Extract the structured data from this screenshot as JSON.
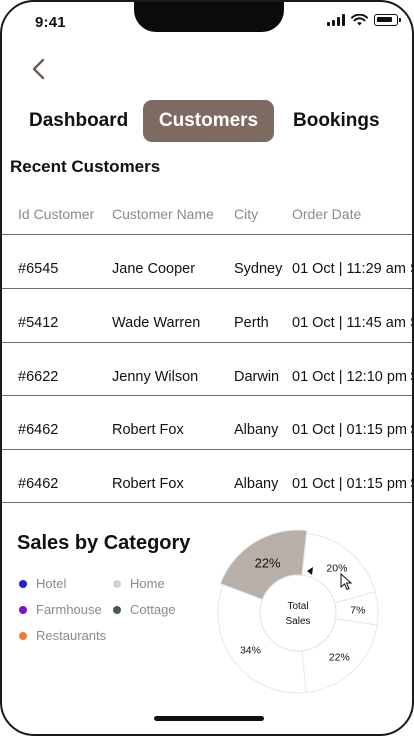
{
  "status_bar": {
    "time": "9:41"
  },
  "tabs": [
    {
      "label": "Dashboard",
      "active": false
    },
    {
      "label": "Customers",
      "active": true
    },
    {
      "label": "Bookings",
      "active": false
    }
  ],
  "recent_customers": {
    "title": "Recent Customers",
    "columns": [
      "Id Customer",
      "Customer Name",
      "City",
      "Order Date"
    ],
    "rows": [
      {
        "id": "#6545",
        "name": "Jane Cooper",
        "city": "Sydney",
        "date": "01 Oct | 11:29 am",
        "extra": "S"
      },
      {
        "id": "#5412",
        "name": "Wade Warren",
        "city": "Perth",
        "date": "01 Oct | 11:45 am",
        "extra": "S"
      },
      {
        "id": "#6622",
        "name": "Jenny Wilson",
        "city": "Darwin",
        "date": "01 Oct | 12:10 pm",
        "extra": "S"
      },
      {
        "id": "#6462",
        "name": "Robert Fox",
        "city": "Albany",
        "date": "01 Oct | 01:15 pm",
        "extra": "S"
      },
      {
        "id": "#6462",
        "name": "Robert Fox",
        "city": "Albany",
        "date": "01 Oct | 01:15 pm",
        "extra": "S"
      }
    ]
  },
  "sales": {
    "title": "Sales by Category",
    "legend": [
      {
        "label": "Hotel",
        "color": "#1f22c9"
      },
      {
        "label": "Home",
        "color": "#d2d2d2"
      },
      {
        "label": "Farmhouse",
        "color": "#7a13c9"
      },
      {
        "label": "Cottage",
        "color": "#435a4e"
      },
      {
        "label": "Restaurants",
        "color": "#f07a35"
      }
    ],
    "center_label_1": "Total",
    "center_label_2": "Sales"
  },
  "chart_data": {
    "type": "pie",
    "slices": [
      {
        "label": "22%",
        "value": 22,
        "highlighted": true
      },
      {
        "label": "20%",
        "value": 20
      },
      {
        "label": "7%",
        "value": 7
      },
      {
        "label": "22%",
        "value": 22
      },
      {
        "label": "34%",
        "value": 34
      }
    ]
  }
}
